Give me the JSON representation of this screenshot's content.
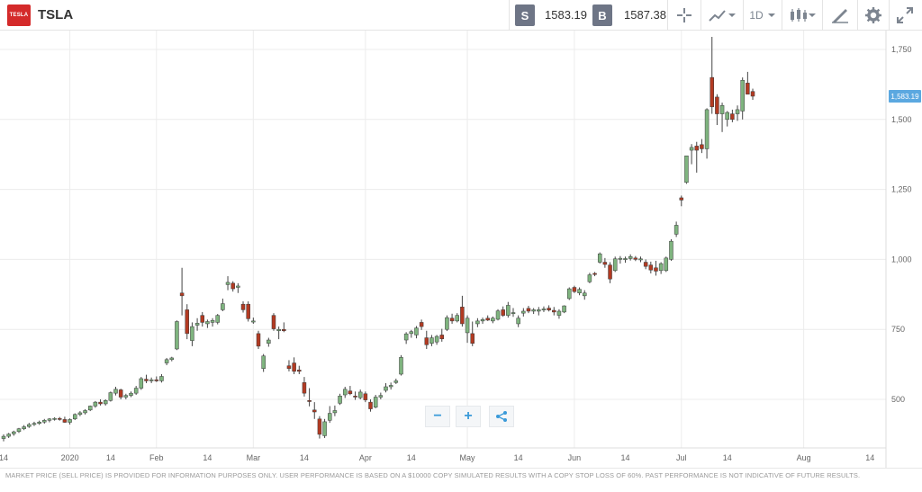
{
  "header": {
    "logo_text": "TESLA",
    "symbol": "TSLA",
    "sell_label": "S",
    "sell_price": "1583.19",
    "buy_label": "B",
    "buy_price": "1587.38",
    "timeframe": "1D",
    "icons": [
      "crosshair-icon",
      "line-chart-icon",
      "candlestick-icon",
      "draw-icon",
      "gear-icon",
      "expand-icon"
    ]
  },
  "footer": {
    "disclaimer": "MARKET PRICE (SELL PRICE) IS PROVIDED FOR INFORMATION PURPOSES ONLY. USER PERFORMANCE IS BASED ON A $10000 COPY SIMULATED RESULTS WITH A COPY STOP LOSS OF 60%. PAST PERFORMANCE IS NOT INDICATIVE OF FUTURE RESULTS."
  },
  "controls": {
    "zoom_out": "−",
    "zoom_in": "+",
    "share_icon": "share-icon"
  },
  "colors": {
    "up": "#7fb47f",
    "down": "#b23a22",
    "accent": "#5ba8e0",
    "grid": "#ececec",
    "badge": "#6e7586"
  },
  "chart_data": {
    "type": "candlestick",
    "symbol": "TSLA",
    "current_price_label": "1,583.19",
    "ylim": [
      320,
      1800
    ],
    "y_ticks": [
      500,
      750,
      1000,
      1250,
      1500,
      1750
    ],
    "y_tick_labels": [
      "500",
      "750",
      "1,000",
      "1,250",
      "1,500",
      "1,750"
    ],
    "x_tick_labels": [
      "14",
      "2020",
      "14",
      "Feb",
      "14",
      "Mar",
      "14",
      "Apr",
      "14",
      "May",
      "14",
      "Jun",
      "14",
      "Jul",
      "14",
      "Aug",
      "14"
    ],
    "x_tick_indices": [
      0,
      13,
      21,
      30,
      40,
      49,
      59,
      71,
      80,
      91,
      101,
      112,
      122,
      133,
      142,
      157,
      170
    ],
    "month_boundaries": [
      13,
      30,
      49,
      71,
      91,
      112,
      133,
      157
    ],
    "candles": [
      {
        "o": 360,
        "h": 375,
        "l": 350,
        "c": 368
      },
      {
        "o": 368,
        "h": 380,
        "l": 362,
        "c": 376
      },
      {
        "o": 377,
        "h": 388,
        "l": 370,
        "c": 384
      },
      {
        "o": 385,
        "h": 398,
        "l": 380,
        "c": 395
      },
      {
        "o": 395,
        "h": 408,
        "l": 390,
        "c": 402
      },
      {
        "o": 403,
        "h": 416,
        "l": 398,
        "c": 410
      },
      {
        "o": 411,
        "h": 420,
        "l": 405,
        "c": 414
      },
      {
        "o": 414,
        "h": 424,
        "l": 409,
        "c": 419
      },
      {
        "o": 419,
        "h": 430,
        "l": 413,
        "c": 425
      },
      {
        "o": 425,
        "h": 433,
        "l": 418,
        "c": 430
      },
      {
        "o": 430,
        "h": 436,
        "l": 424,
        "c": 432
      },
      {
        "o": 432,
        "h": 437,
        "l": 424,
        "c": 428
      },
      {
        "o": 428,
        "h": 438,
        "l": 416,
        "c": 418
      },
      {
        "o": 418,
        "h": 432,
        "l": 410,
        "c": 428
      },
      {
        "o": 430,
        "h": 450,
        "l": 426,
        "c": 446
      },
      {
        "o": 446,
        "h": 458,
        "l": 440,
        "c": 452
      },
      {
        "o": 452,
        "h": 465,
        "l": 446,
        "c": 460
      },
      {
        "o": 462,
        "h": 478,
        "l": 458,
        "c": 476
      },
      {
        "o": 476,
        "h": 494,
        "l": 470,
        "c": 490
      },
      {
        "o": 490,
        "h": 500,
        "l": 478,
        "c": 484
      },
      {
        "o": 484,
        "h": 500,
        "l": 478,
        "c": 496
      },
      {
        "o": 496,
        "h": 528,
        "l": 492,
        "c": 524
      },
      {
        "o": 522,
        "h": 545,
        "l": 514,
        "c": 536
      },
      {
        "o": 534,
        "h": 538,
        "l": 500,
        "c": 508
      },
      {
        "o": 508,
        "h": 520,
        "l": 500,
        "c": 514
      },
      {
        "o": 514,
        "h": 528,
        "l": 508,
        "c": 522
      },
      {
        "o": 522,
        "h": 548,
        "l": 516,
        "c": 540
      },
      {
        "o": 540,
        "h": 580,
        "l": 534,
        "c": 574
      },
      {
        "o": 572,
        "h": 588,
        "l": 558,
        "c": 566
      },
      {
        "o": 566,
        "h": 578,
        "l": 558,
        "c": 570
      },
      {
        "o": 570,
        "h": 582,
        "l": 562,
        "c": 566
      },
      {
        "o": 566,
        "h": 590,
        "l": 560,
        "c": 582
      },
      {
        "o": 630,
        "h": 648,
        "l": 622,
        "c": 642
      },
      {
        "o": 642,
        "h": 652,
        "l": 636,
        "c": 648
      },
      {
        "o": 680,
        "h": 782,
        "l": 676,
        "c": 778
      },
      {
        "o": 880,
        "h": 970,
        "l": 800,
        "c": 870
      },
      {
        "o": 820,
        "h": 840,
        "l": 715,
        "c": 735
      },
      {
        "o": 710,
        "h": 775,
        "l": 690,
        "c": 760
      },
      {
        "o": 765,
        "h": 790,
        "l": 745,
        "c": 772
      },
      {
        "o": 800,
        "h": 812,
        "l": 760,
        "c": 775
      },
      {
        "o": 770,
        "h": 785,
        "l": 755,
        "c": 778
      },
      {
        "o": 775,
        "h": 790,
        "l": 760,
        "c": 782
      },
      {
        "o": 775,
        "h": 805,
        "l": 768,
        "c": 800
      },
      {
        "o": 820,
        "h": 860,
        "l": 815,
        "c": 842
      },
      {
        "o": 910,
        "h": 940,
        "l": 890,
        "c": 918
      },
      {
        "o": 915,
        "h": 922,
        "l": 885,
        "c": 895
      },
      {
        "o": 900,
        "h": 915,
        "l": 880,
        "c": 905
      },
      {
        "o": 840,
        "h": 850,
        "l": 810,
        "c": 820
      },
      {
        "o": 840,
        "h": 850,
        "l": 778,
        "c": 788
      },
      {
        "o": 780,
        "h": 792,
        "l": 770,
        "c": 780
      },
      {
        "o": 735,
        "h": 745,
        "l": 680,
        "c": 690
      },
      {
        "o": 610,
        "h": 662,
        "l": 598,
        "c": 655
      },
      {
        "o": 700,
        "h": 720,
        "l": 688,
        "c": 712
      },
      {
        "o": 800,
        "h": 808,
        "l": 745,
        "c": 752
      },
      {
        "o": 745,
        "h": 760,
        "l": 715,
        "c": 750
      },
      {
        "o": 750,
        "h": 775,
        "l": 740,
        "c": 745
      },
      {
        "o": 620,
        "h": 640,
        "l": 600,
        "c": 610
      },
      {
        "o": 630,
        "h": 650,
        "l": 590,
        "c": 600
      },
      {
        "o": 605,
        "h": 620,
        "l": 590,
        "c": 600
      },
      {
        "o": 560,
        "h": 580,
        "l": 510,
        "c": 522
      },
      {
        "o": 496,
        "h": 540,
        "l": 475,
        "c": 492
      },
      {
        "o": 462,
        "h": 490,
        "l": 430,
        "c": 455
      },
      {
        "o": 430,
        "h": 440,
        "l": 360,
        "c": 375
      },
      {
        "o": 370,
        "h": 430,
        "l": 362,
        "c": 420
      },
      {
        "o": 425,
        "h": 476,
        "l": 416,
        "c": 450
      },
      {
        "o": 452,
        "h": 478,
        "l": 440,
        "c": 460
      },
      {
        "o": 486,
        "h": 520,
        "l": 480,
        "c": 512
      },
      {
        "o": 516,
        "h": 545,
        "l": 505,
        "c": 536
      },
      {
        "o": 530,
        "h": 548,
        "l": 515,
        "c": 520
      },
      {
        "o": 512,
        "h": 528,
        "l": 498,
        "c": 510
      },
      {
        "o": 506,
        "h": 535,
        "l": 500,
        "c": 526
      },
      {
        "o": 520,
        "h": 528,
        "l": 490,
        "c": 498
      },
      {
        "o": 490,
        "h": 500,
        "l": 456,
        "c": 466
      },
      {
        "o": 472,
        "h": 516,
        "l": 468,
        "c": 508
      },
      {
        "o": 508,
        "h": 524,
        "l": 500,
        "c": 514
      },
      {
        "o": 532,
        "h": 558,
        "l": 525,
        "c": 545
      },
      {
        "o": 545,
        "h": 560,
        "l": 535,
        "c": 550
      },
      {
        "o": 560,
        "h": 574,
        "l": 555,
        "c": 566
      },
      {
        "o": 590,
        "h": 658,
        "l": 585,
        "c": 650
      },
      {
        "o": 712,
        "h": 740,
        "l": 698,
        "c": 734
      },
      {
        "o": 735,
        "h": 748,
        "l": 720,
        "c": 742
      },
      {
        "o": 730,
        "h": 762,
        "l": 718,
        "c": 755
      },
      {
        "o": 775,
        "h": 785,
        "l": 748,
        "c": 760
      },
      {
        "o": 720,
        "h": 745,
        "l": 680,
        "c": 695
      },
      {
        "o": 700,
        "h": 730,
        "l": 690,
        "c": 720
      },
      {
        "o": 705,
        "h": 730,
        "l": 695,
        "c": 725
      },
      {
        "o": 730,
        "h": 752,
        "l": 706,
        "c": 716
      },
      {
        "o": 750,
        "h": 800,
        "l": 744,
        "c": 792
      },
      {
        "o": 790,
        "h": 806,
        "l": 770,
        "c": 780
      },
      {
        "o": 780,
        "h": 808,
        "l": 775,
        "c": 800
      },
      {
        "o": 830,
        "h": 870,
        "l": 760,
        "c": 770
      },
      {
        "o": 738,
        "h": 800,
        "l": 702,
        "c": 790
      },
      {
        "o": 735,
        "h": 778,
        "l": 690,
        "c": 700
      },
      {
        "o": 770,
        "h": 790,
        "l": 758,
        "c": 780
      },
      {
        "o": 780,
        "h": 792,
        "l": 770,
        "c": 785
      },
      {
        "o": 790,
        "h": 800,
        "l": 780,
        "c": 783
      },
      {
        "o": 780,
        "h": 796,
        "l": 772,
        "c": 790
      },
      {
        "o": 786,
        "h": 822,
        "l": 782,
        "c": 816
      },
      {
        "o": 820,
        "h": 832,
        "l": 795,
        "c": 800
      },
      {
        "o": 800,
        "h": 848,
        "l": 792,
        "c": 836
      },
      {
        "o": 810,
        "h": 826,
        "l": 795,
        "c": 810
      },
      {
        "o": 770,
        "h": 800,
        "l": 758,
        "c": 790
      },
      {
        "o": 808,
        "h": 826,
        "l": 796,
        "c": 815
      },
      {
        "o": 825,
        "h": 834,
        "l": 808,
        "c": 815
      },
      {
        "o": 815,
        "h": 826,
        "l": 805,
        "c": 820
      },
      {
        "o": 815,
        "h": 830,
        "l": 800,
        "c": 820
      },
      {
        "o": 820,
        "h": 832,
        "l": 812,
        "c": 823
      },
      {
        "o": 826,
        "h": 836,
        "l": 814,
        "c": 819
      },
      {
        "o": 818,
        "h": 830,
        "l": 800,
        "c": 812
      },
      {
        "o": 800,
        "h": 822,
        "l": 788,
        "c": 815
      },
      {
        "o": 812,
        "h": 836,
        "l": 808,
        "c": 834
      },
      {
        "o": 860,
        "h": 900,
        "l": 855,
        "c": 895
      },
      {
        "o": 900,
        "h": 906,
        "l": 880,
        "c": 885
      },
      {
        "o": 880,
        "h": 900,
        "l": 872,
        "c": 893
      },
      {
        "o": 870,
        "h": 890,
        "l": 856,
        "c": 880
      },
      {
        "o": 920,
        "h": 952,
        "l": 915,
        "c": 945
      },
      {
        "o": 950,
        "h": 955,
        "l": 940,
        "c": 948
      },
      {
        "o": 990,
        "h": 1025,
        "l": 985,
        "c": 1020
      },
      {
        "o": 990,
        "h": 1005,
        "l": 970,
        "c": 982
      },
      {
        "o": 980,
        "h": 990,
        "l": 915,
        "c": 930
      },
      {
        "o": 960,
        "h": 1010,
        "l": 955,
        "c": 1002
      },
      {
        "o": 1000,
        "h": 1012,
        "l": 985,
        "c": 1004
      },
      {
        "o": 1000,
        "h": 1010,
        "l": 988,
        "c": 1003
      },
      {
        "o": 1003,
        "h": 1018,
        "l": 996,
        "c": 1010
      },
      {
        "o": 1005,
        "h": 1012,
        "l": 994,
        "c": 1000
      },
      {
        "o": 1000,
        "h": 1010,
        "l": 990,
        "c": 1002
      },
      {
        "o": 990,
        "h": 1000,
        "l": 965,
        "c": 975
      },
      {
        "o": 980,
        "h": 992,
        "l": 950,
        "c": 962
      },
      {
        "o": 970,
        "h": 995,
        "l": 942,
        "c": 958
      },
      {
        "o": 960,
        "h": 990,
        "l": 948,
        "c": 985
      },
      {
        "o": 960,
        "h": 1010,
        "l": 955,
        "c": 1005
      },
      {
        "o": 1000,
        "h": 1072,
        "l": 995,
        "c": 1065
      },
      {
        "o": 1090,
        "h": 1135,
        "l": 1080,
        "c": 1122
      },
      {
        "o": 1220,
        "h": 1228,
        "l": 1190,
        "c": 1212
      },
      {
        "o": 1275,
        "h": 1370,
        "l": 1270,
        "c": 1370
      },
      {
        "o": 1390,
        "h": 1412,
        "l": 1340,
        "c": 1400
      },
      {
        "o": 1405,
        "h": 1420,
        "l": 1310,
        "c": 1390
      },
      {
        "o": 1410,
        "h": 1430,
        "l": 1380,
        "c": 1395
      },
      {
        "o": 1395,
        "h": 1540,
        "l": 1360,
        "c": 1535
      },
      {
        "o": 1650,
        "h": 1795,
        "l": 1520,
        "c": 1545
      },
      {
        "o": 1580,
        "h": 1590,
        "l": 1480,
        "c": 1520
      },
      {
        "o": 1520,
        "h": 1560,
        "l": 1455,
        "c": 1550
      },
      {
        "o": 1500,
        "h": 1530,
        "l": 1475,
        "c": 1525
      },
      {
        "o": 1520,
        "h": 1535,
        "l": 1490,
        "c": 1500
      },
      {
        "o": 1520,
        "h": 1550,
        "l": 1495,
        "c": 1535
      },
      {
        "o": 1530,
        "h": 1650,
        "l": 1500,
        "c": 1640
      },
      {
        "o": 1630,
        "h": 1670,
        "l": 1590,
        "c": 1590
      },
      {
        "o": 1600,
        "h": 1610,
        "l": 1570,
        "c": 1583
      }
    ]
  }
}
